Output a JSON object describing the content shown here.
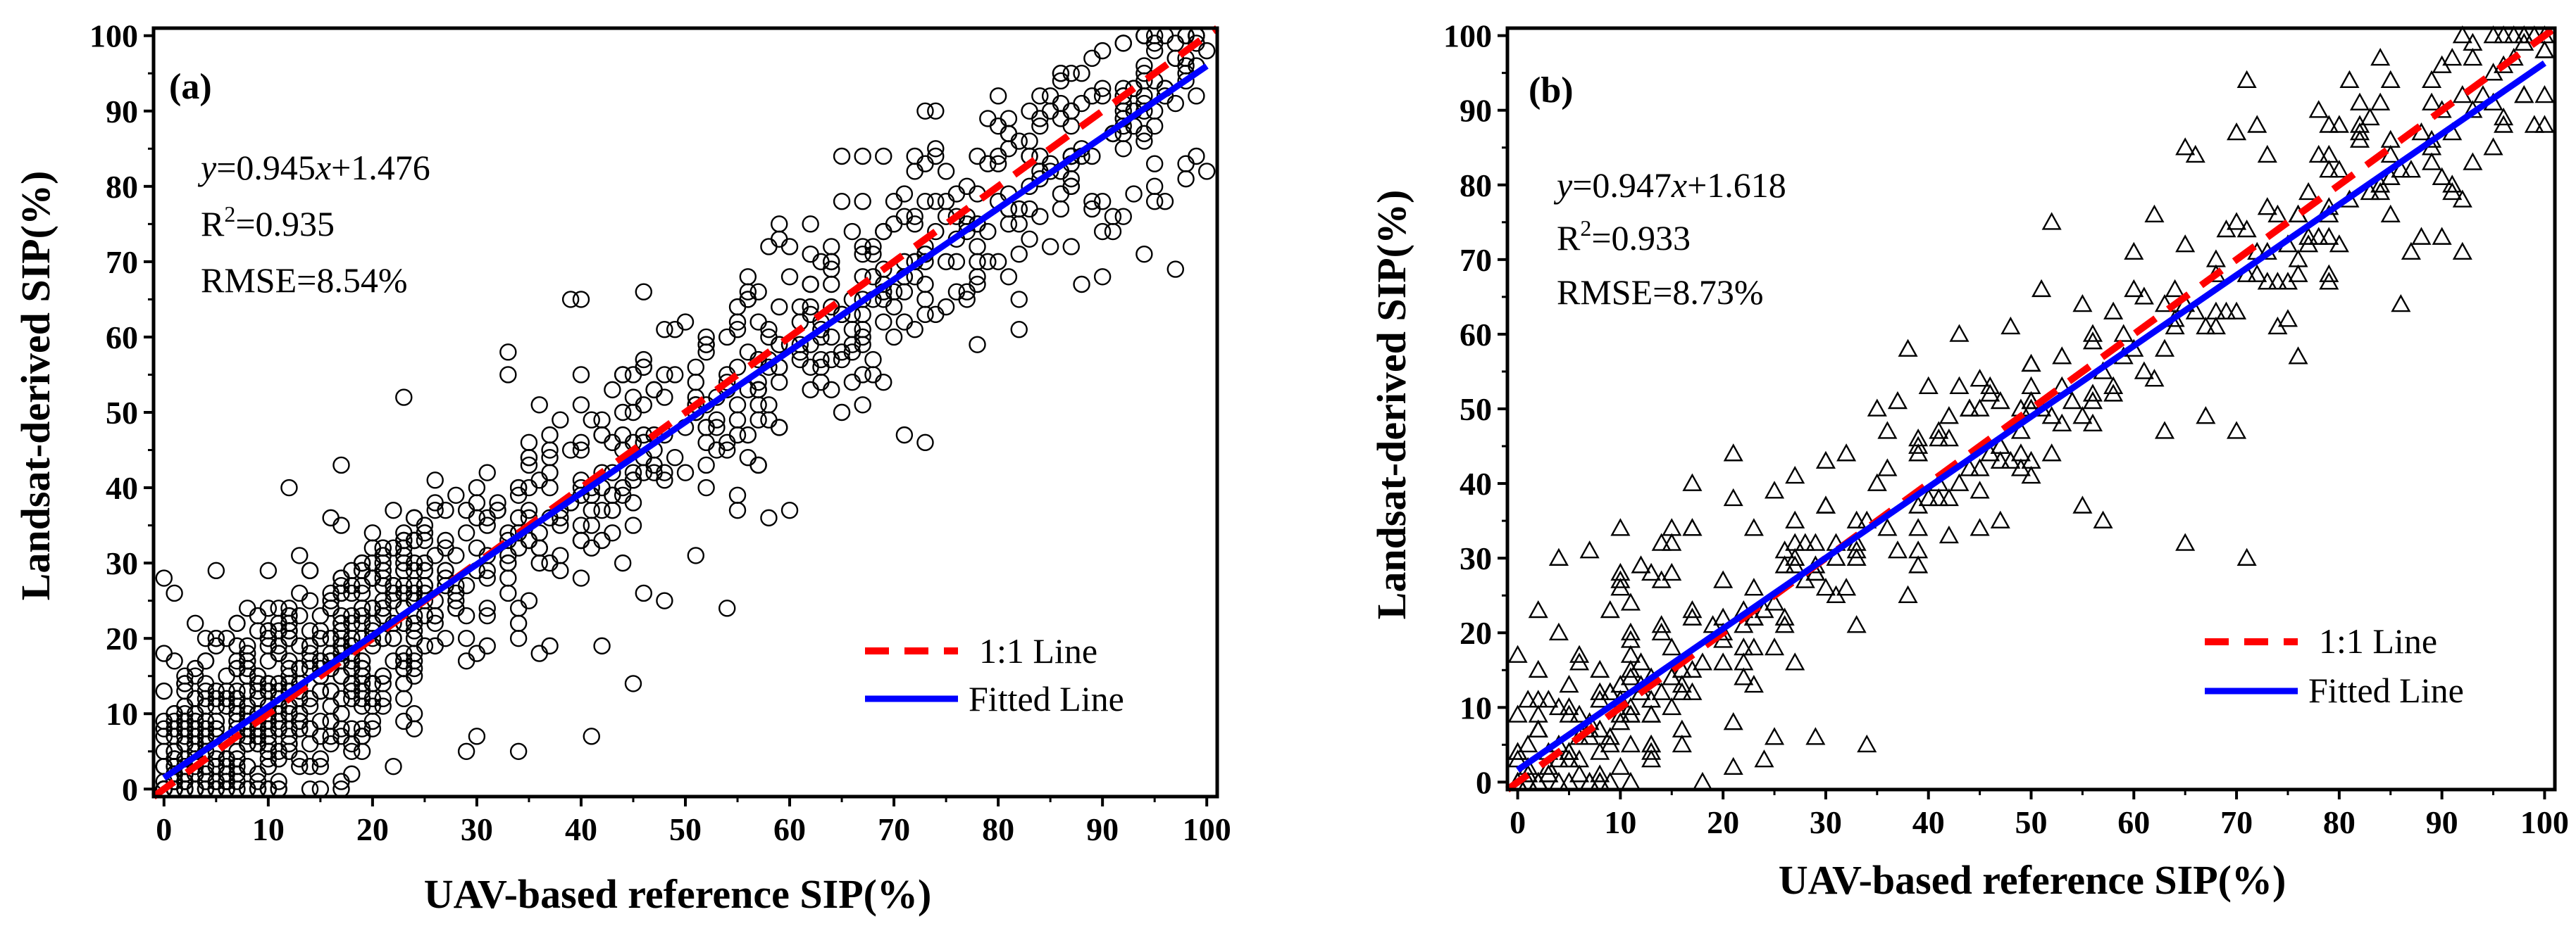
{
  "colors": {
    "identity_line": "#ff0000",
    "fitted_line": "#0000ff",
    "markers": "#000000"
  },
  "chart_data": [
    {
      "type": "scatter",
      "panel_label": "(a)",
      "marker": "circle",
      "xlabel": "UAV-based reference SIP(%)",
      "ylabel": "Landsat-derived SIP(%)",
      "xlim": [
        -1,
        101
      ],
      "ylim": [
        -1,
        101
      ],
      "x_ticks": [
        0,
        10,
        20,
        30,
        40,
        50,
        60,
        70,
        80,
        90,
        100
      ],
      "y_ticks": [
        0,
        10,
        20,
        30,
        40,
        50,
        60,
        70,
        80,
        90,
        100
      ],
      "stats": {
        "eq_y": "y",
        "eq_x": "x",
        "eq_mid": "=0.945",
        "eq_end": "+1.476",
        "r2_base": "R",
        "r2_sup": "2",
        "r2_value": "=0.935",
        "rmse": "RMSE=8.54%"
      },
      "fit": {
        "slope": 0.945,
        "intercept": 1.476
      },
      "legend": {
        "identity": "1:1 Line",
        "fitted": "Fitted Line"
      },
      "n_points": 1200,
      "points": [
        [
          1,
          26
        ],
        [
          5,
          29
        ],
        [
          12,
          40
        ],
        [
          17,
          43
        ],
        [
          23,
          52
        ],
        [
          40,
          65
        ],
        [
          39,
          65
        ],
        [
          46,
          66
        ],
        [
          35,
          46
        ],
        [
          33,
          58
        ],
        [
          33,
          55
        ],
        [
          45,
          14
        ],
        [
          42,
          19
        ],
        [
          54,
          24
        ],
        [
          58,
          36
        ],
        [
          60,
          37
        ],
        [
          48,
          25
        ],
        [
          41,
          7
        ],
        [
          29,
          5
        ],
        [
          30,
          7
        ],
        [
          22,
          3
        ],
        [
          17,
          1
        ],
        [
          10,
          0
        ],
        [
          73,
          90
        ],
        [
          69,
          84
        ],
        [
          65,
          84
        ],
        [
          67,
          84
        ],
        [
          82,
          61
        ],
        [
          78,
          59
        ],
        [
          73,
          46
        ],
        [
          71,
          47
        ],
        [
          67,
          51
        ],
        [
          88,
          67
        ],
        [
          90,
          68
        ],
        [
          97,
          69
        ],
        [
          93,
          79
        ],
        [
          95,
          94
        ],
        [
          95,
          80
        ],
        [
          89,
          77
        ],
        [
          87,
          72
        ],
        [
          85,
          72
        ],
        [
          83,
          73
        ],
        [
          56,
          68
        ],
        [
          56,
          66
        ],
        [
          59,
          73
        ],
        [
          62,
          71
        ],
        [
          52,
          59
        ],
        [
          50,
          62
        ],
        [
          44,
          55
        ],
        [
          46,
          56
        ],
        [
          38,
          49
        ],
        [
          37,
          44
        ],
        [
          34,
          40
        ],
        [
          32,
          38
        ],
        [
          27,
          37
        ],
        [
          26,
          38
        ],
        [
          25,
          35
        ],
        [
          24,
          33
        ],
        [
          20,
          28
        ],
        [
          19,
          30
        ],
        [
          16,
          36
        ],
        [
          17,
          35
        ],
        [
          14,
          29
        ],
        [
          12,
          22
        ],
        [
          8,
          17
        ],
        [
          6,
          15
        ],
        [
          4,
          12
        ],
        [
          3,
          9
        ],
        [
          2,
          8
        ],
        [
          1,
          5
        ],
        [
          0,
          0
        ],
        [
          2,
          3
        ],
        [
          5,
          0
        ],
        [
          7,
          3
        ],
        [
          9,
          6
        ],
        [
          11,
          10
        ],
        [
          13,
          9
        ],
        [
          15,
          13
        ],
        [
          18,
          12
        ],
        [
          21,
          15
        ],
        [
          23,
          18
        ],
        [
          26,
          22
        ],
        [
          28,
          26
        ],
        [
          31,
          29
        ],
        [
          33,
          31
        ],
        [
          36,
          34
        ],
        [
          38,
          36
        ],
        [
          41,
          40
        ],
        [
          43,
          42
        ],
        [
          46,
          44
        ],
        [
          48,
          47
        ],
        [
          51,
          50
        ],
        [
          53,
          52
        ],
        [
          56,
          53
        ],
        [
          58,
          56
        ],
        [
          61,
          58
        ],
        [
          63,
          60
        ],
        [
          66,
          63
        ],
        [
          68,
          65
        ],
        [
          71,
          68
        ],
        [
          73,
          71
        ],
        [
          76,
          73
        ],
        [
          78,
          75
        ],
        [
          81,
          77
        ],
        [
          83,
          80
        ],
        [
          86,
          82
        ],
        [
          88,
          85
        ],
        [
          91,
          87
        ],
        [
          93,
          90
        ],
        [
          96,
          92
        ],
        [
          98,
          95
        ],
        [
          100,
          98
        ],
        [
          99,
          100
        ],
        [
          97,
          97
        ],
        [
          94,
          95
        ],
        [
          92,
          93
        ],
        [
          89,
          92
        ],
        [
          87,
          90
        ],
        [
          84,
          88
        ],
        [
          82,
          86
        ],
        [
          79,
          83
        ],
        [
          77,
          80
        ],
        [
          74,
          78
        ],
        [
          72,
          76
        ],
        [
          69,
          74
        ],
        [
          67,
          72
        ],
        [
          64,
          70
        ],
        [
          62,
          67
        ],
        [
          59,
          64
        ],
        [
          57,
          62
        ],
        [
          54,
          60
        ],
        [
          52,
          58
        ],
        [
          49,
          55
        ],
        [
          47,
          53
        ],
        [
          44,
          50
        ],
        [
          42,
          47
        ],
        [
          39,
          45
        ],
        [
          37,
          42
        ],
        [
          34,
          39
        ],
        [
          32,
          37
        ],
        [
          29,
          34
        ],
        [
          27,
          32
        ],
        [
          24,
          29
        ],
        [
          22,
          27
        ],
        [
          19,
          24
        ],
        [
          17,
          22
        ],
        [
          14,
          19
        ],
        [
          12,
          17
        ],
        [
          9,
          14
        ],
        [
          7,
          12
        ],
        [
          4,
          9
        ],
        [
          2,
          6
        ],
        [
          0,
          3
        ]
      ]
    },
    {
      "type": "scatter",
      "panel_label": "(b)",
      "marker": "triangle",
      "xlabel": "UAV-based reference SIP(%)",
      "ylabel": "Landsat-derived SIP(%)",
      "xlim": [
        -1,
        101
      ],
      "ylim": [
        -1,
        101
      ],
      "x_ticks": [
        0,
        10,
        20,
        30,
        40,
        50,
        60,
        70,
        80,
        90,
        100
      ],
      "y_ticks": [
        0,
        10,
        20,
        30,
        40,
        50,
        60,
        70,
        80,
        90,
        100
      ],
      "stats": {
        "eq_y": "y",
        "eq_x": "x",
        "eq_mid": "=0.947",
        "eq_end": "+1.618",
        "r2_base": "R",
        "r2_sup": "2",
        "r2_value": "=0.933",
        "rmse": "RMSE=8.73%"
      },
      "fit": {
        "slope": 0.947,
        "intercept": 1.618
      },
      "legend": {
        "identity": "1:1 Line",
        "fitted": "Fitted Line"
      },
      "n_points": 420,
      "points": [
        [
          2,
          23
        ],
        [
          7,
          31
        ],
        [
          10,
          34
        ],
        [
          17,
          40
        ],
        [
          21,
          44
        ],
        [
          24,
          3
        ],
        [
          29,
          6
        ],
        [
          34,
          5
        ],
        [
          38,
          58
        ],
        [
          43,
          60
        ],
        [
          52,
          75
        ],
        [
          60,
          71
        ],
        [
          65,
          85
        ],
        [
          66,
          84
        ],
        [
          70,
          87
        ],
        [
          71,
          30
        ],
        [
          65,
          32
        ],
        [
          70,
          47
        ],
        [
          57,
          35
        ],
        [
          58,
          63
        ],
        [
          55,
          64
        ],
        [
          73,
          84
        ],
        [
          78,
          90
        ],
        [
          80,
          88
        ],
        [
          82,
          88
        ],
        [
          83,
          89
        ],
        [
          86,
          64
        ],
        [
          90,
          96
        ],
        [
          91,
          97
        ],
        [
          92,
          71
        ],
        [
          96,
          96
        ],
        [
          99,
          100
        ],
        [
          100,
          98
        ],
        [
          100,
          92
        ],
        [
          97,
          97
        ],
        [
          95,
          95
        ],
        [
          93,
          90
        ],
        [
          88,
          87
        ],
        [
          86,
          82
        ],
        [
          84,
          80
        ],
        [
          81,
          78
        ],
        [
          77,
          73
        ],
        [
          75,
          72
        ],
        [
          72,
          68
        ],
        [
          69,
          63
        ],
        [
          67,
          61
        ],
        [
          63,
          58
        ],
        [
          60,
          58
        ],
        [
          57,
          55
        ],
        [
          54,
          51
        ],
        [
          52,
          49
        ],
        [
          49,
          47
        ],
        [
          47,
          45
        ],
        [
          44,
          42
        ],
        [
          41,
          40
        ],
        [
          39,
          37
        ],
        [
          36,
          34
        ],
        [
          33,
          31
        ],
        [
          31,
          30
        ],
        [
          28,
          27
        ],
        [
          25,
          24
        ],
        [
          23,
          22
        ],
        [
          20,
          19
        ],
        [
          18,
          16
        ],
        [
          15,
          14
        ],
        [
          12,
          12
        ],
        [
          10,
          9
        ],
        [
          7,
          7
        ],
        [
          5,
          4
        ],
        [
          3,
          2
        ],
        [
          1,
          1
        ],
        [
          0,
          0
        ],
        [
          0,
          4
        ],
        [
          0,
          9
        ],
        [
          1,
          5
        ],
        [
          2,
          7
        ],
        [
          3,
          1
        ],
        [
          4,
          5
        ],
        [
          5,
          3
        ],
        [
          6,
          9
        ],
        [
          8,
          12
        ],
        [
          9,
          6
        ],
        [
          11,
          15
        ],
        [
          13,
          9
        ],
        [
          14,
          20
        ],
        [
          16,
          13
        ],
        [
          19,
          21
        ],
        [
          22,
          18
        ],
        [
          26,
          22
        ],
        [
          27,
          30
        ],
        [
          30,
          37
        ],
        [
          32,
          26
        ],
        [
          35,
          40
        ],
        [
          37,
          31
        ],
        [
          40,
          38
        ],
        [
          42,
          46
        ],
        [
          45,
          39
        ],
        [
          46,
          52
        ],
        [
          48,
          43
        ],
        [
          50,
          56
        ],
        [
          53,
          57
        ],
        [
          56,
          52
        ],
        [
          59,
          60
        ],
        [
          61,
          65
        ],
        [
          62,
          54
        ],
        [
          64,
          66
        ],
        [
          68,
          70
        ],
        [
          71,
          74
        ],
        [
          74,
          76
        ],
        [
          76,
          68
        ],
        [
          79,
          84
        ],
        [
          83,
          79
        ],
        [
          85,
          86
        ],
        [
          87,
          82
        ],
        [
          89,
          91
        ],
        [
          91,
          87
        ],
        [
          94,
          92
        ],
        [
          96,
          89
        ],
        [
          98,
          99
        ]
      ]
    }
  ]
}
